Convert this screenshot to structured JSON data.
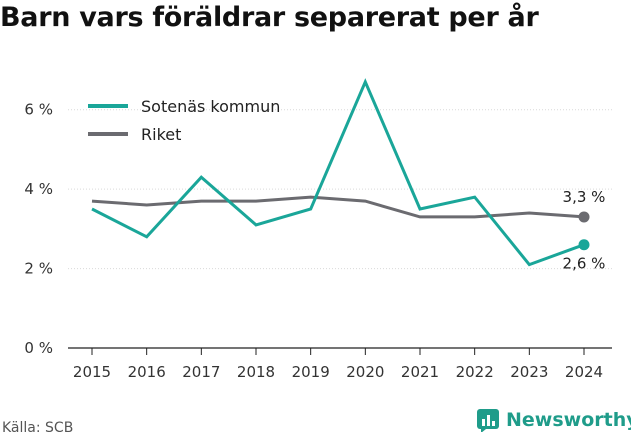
{
  "title": "Barn vars föräldrar separerat per år",
  "source": "Källa: SCB",
  "brand": "Newsworthy",
  "chart_data": {
    "type": "line",
    "x": [
      2015,
      2016,
      2017,
      2018,
      2019,
      2020,
      2021,
      2022,
      2023,
      2024
    ],
    "ylim": [
      0,
      7
    ],
    "yticks": [
      0,
      2,
      4,
      6
    ],
    "ytick_labels": [
      "0 %",
      "2 %",
      "4 %",
      "6 %"
    ],
    "xtick_labels": [
      "2015",
      "2016",
      "2017",
      "2018",
      "2019",
      "2020",
      "2021",
      "2022",
      "2023",
      "2024"
    ],
    "grid": "horizontal",
    "legend_position": "top-left",
    "series": [
      {
        "name": "Sotenäs kommun",
        "color": "#1aa699",
        "values": [
          3.5,
          2.8,
          4.3,
          3.1,
          3.5,
          6.7,
          3.5,
          3.8,
          2.1,
          2.6
        ],
        "end_label": "2,6 %"
      },
      {
        "name": "Riket",
        "color": "#6b6b70",
        "values": [
          3.7,
          3.6,
          3.7,
          3.7,
          3.8,
          3.7,
          3.3,
          3.3,
          3.4,
          3.3
        ],
        "end_label": "3,3 %"
      }
    ]
  }
}
